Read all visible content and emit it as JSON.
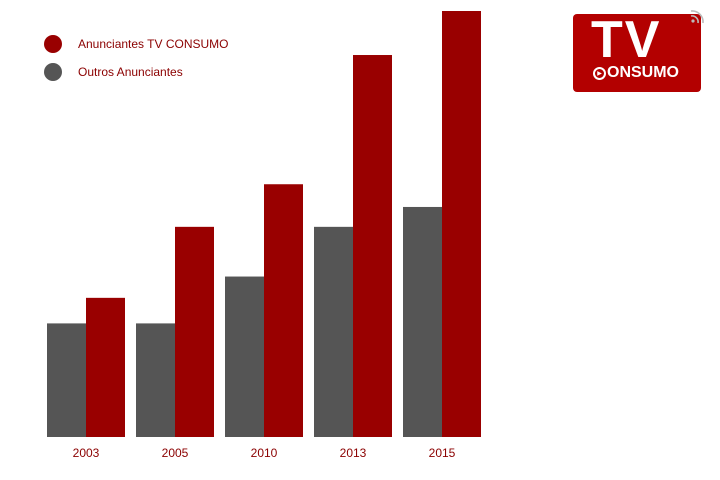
{
  "chart_data": {
    "type": "bar",
    "categories": [
      "2003",
      "2005",
      "2010",
      "2013",
      "2015"
    ],
    "series": [
      {
        "name": "Outros Anunciantes",
        "values": [
          8,
          8,
          11.3,
          14.8,
          16.2
        ],
        "color": "#555555"
      },
      {
        "name": "Anunciantes TV CONSUMO",
        "values": [
          9.8,
          14.8,
          17.8,
          26.9,
          30
        ],
        "color": "#990000"
      }
    ],
    "title": "",
    "xlabel": "",
    "ylabel": "",
    "ylim": [
      0,
      30
    ],
    "grid": false,
    "legend_position": "top-left"
  },
  "legend": [
    {
      "label": "Anunciantes TV CONSUMO",
      "color": "#990000"
    },
    {
      "label": "Outros Anunciantes",
      "color": "#555555"
    }
  ],
  "logo": {
    "tv": "TV",
    "consumo": "ONSUMO",
    "background": "#b30000"
  }
}
